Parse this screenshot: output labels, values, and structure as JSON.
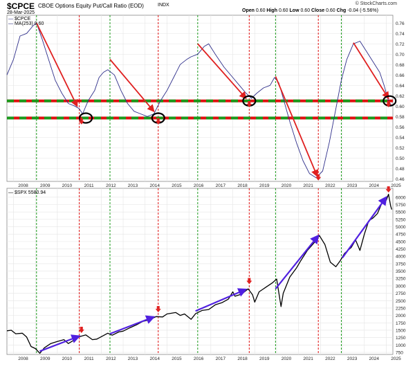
{
  "header": {
    "symbol": "$CPCE",
    "description": "CBOE Options Equity Put/Call Ratio (EOD)",
    "exchange": "INDX",
    "date": "28-Mar-2025",
    "watermark": "© StockCharts.com",
    "ohlc": {
      "open_label": "Open",
      "open": "0.60",
      "high_label": "High",
      "high": "0.60",
      "low_label": "Low",
      "low": "0.60",
      "close_label": "Close",
      "close": "0.60",
      "chg_label": "Chg",
      "chg": "-0.04 (-5.56%)"
    }
  },
  "legend": {
    "series1": "$CPCE",
    "series2": "MA(253) 0.60",
    "series3": "$SPX 5580.94"
  },
  "colors": {
    "ratio_line": "#2e2e8a",
    "spx_line": "#000000",
    "support_red": "#e01010",
    "support_green": "#1a9a1a",
    "vline_red": "#e01010",
    "vline_green": "#1a9a1a",
    "arrow_red": "#e02020",
    "arrow_blue": "#5020e0",
    "grid": "#e4e4e4"
  },
  "chart_data": [
    {
      "type": "line",
      "title": "$CPCE CBOE Options Equity Put/Call Ratio (EOD)",
      "series_name": "MA(253)",
      "x_ticks": [
        "2008",
        "2009",
        "2010",
        "2011",
        "2012",
        "2013",
        "2014",
        "2015",
        "2016",
        "2017",
        "2018",
        "2019",
        "2020",
        "2021",
        "2022",
        "2023",
        "2024",
        "2025"
      ],
      "y_ticks": [
        "0.76",
        "0.74",
        "0.72",
        "0.70",
        "0.68",
        "0.66",
        "0.64",
        "0.62",
        "0.60",
        "0.58",
        "0.56",
        "0.54",
        "0.52",
        "0.50",
        "0.48",
        "0.46"
      ],
      "ylim": [
        0.455,
        0.775
      ],
      "xlim": [
        2007.7,
        2025.3
      ],
      "horizontal_levels": [
        0.61,
        0.577
      ],
      "points": [
        [
          2007.7,
          0.66
        ],
        [
          2008.0,
          0.69
        ],
        [
          2008.3,
          0.735
        ],
        [
          2008.6,
          0.74
        ],
        [
          2008.9,
          0.755
        ],
        [
          2009.05,
          0.76
        ],
        [
          2009.3,
          0.73
        ],
        [
          2009.6,
          0.69
        ],
        [
          2009.9,
          0.65
        ],
        [
          2010.2,
          0.625
        ],
        [
          2010.5,
          0.605
        ],
        [
          2010.8,
          0.6
        ],
        [
          2011.0,
          0.595
        ],
        [
          2011.15,
          0.585
        ],
        [
          2011.4,
          0.61
        ],
        [
          2011.7,
          0.63
        ],
        [
          2011.9,
          0.655
        ],
        [
          2012.1,
          0.665
        ],
        [
          2012.3,
          0.67
        ],
        [
          2012.6,
          0.66
        ],
        [
          2012.9,
          0.63
        ],
        [
          2013.2,
          0.605
        ],
        [
          2013.5,
          0.59
        ],
        [
          2013.8,
          0.585
        ],
        [
          2014.1,
          0.58
        ],
        [
          2014.4,
          0.585
        ],
        [
          2014.7,
          0.61
        ],
        [
          2015.0,
          0.63
        ],
        [
          2015.3,
          0.655
        ],
        [
          2015.6,
          0.68
        ],
        [
          2015.9,
          0.69
        ],
        [
          2016.1,
          0.695
        ],
        [
          2016.4,
          0.7
        ],
        [
          2016.7,
          0.715
        ],
        [
          2016.9,
          0.72
        ],
        [
          2017.2,
          0.7
        ],
        [
          2017.6,
          0.675
        ],
        [
          2018.0,
          0.655
        ],
        [
          2018.3,
          0.64
        ],
        [
          2018.6,
          0.625
        ],
        [
          2018.85,
          0.615
        ],
        [
          2019.1,
          0.625
        ],
        [
          2019.4,
          0.635
        ],
        [
          2019.7,
          0.64
        ],
        [
          2019.9,
          0.655
        ],
        [
          2020.1,
          0.645
        ],
        [
          2020.3,
          0.615
        ],
        [
          2020.6,
          0.57
        ],
        [
          2020.9,
          0.53
        ],
        [
          2021.2,
          0.495
        ],
        [
          2021.5,
          0.47
        ],
        [
          2021.8,
          0.462
        ],
        [
          2022.1,
          0.475
        ],
        [
          2022.4,
          0.53
        ],
        [
          2022.7,
          0.595
        ],
        [
          2022.95,
          0.65
        ],
        [
          2023.2,
          0.69
        ],
        [
          2023.5,
          0.72
        ],
        [
          2023.8,
          0.725
        ],
        [
          2024.1,
          0.705
        ],
        [
          2024.4,
          0.685
        ],
        [
          2024.7,
          0.665
        ],
        [
          2024.9,
          0.64
        ],
        [
          2025.1,
          0.61
        ],
        [
          2025.25,
          0.6
        ]
      ],
      "vlines_red": [
        2011.0,
        2014.6,
        2018.75,
        2021.9
      ],
      "vlines_green": [
        2009.05,
        2012.4,
        2016.4,
        2019.95,
        2022.95
      ],
      "highlight_circles": [
        [
          2011.3,
          0.577
        ],
        [
          2014.6,
          0.577
        ],
        [
          2018.75,
          0.61
        ],
        [
          2025.15,
          0.61
        ]
      ],
      "down_markers": [
        [
          2011.1,
          0.57
        ],
        [
          2014.6,
          0.57
        ],
        [
          2018.75,
          0.603
        ],
        [
          2021.9,
          0.462
        ],
        [
          2025.1,
          0.603
        ]
      ],
      "red_trend_arrows": [
        [
          [
            2009.05,
            0.76
          ],
          [
            2010.9,
            0.6
          ]
        ],
        [
          [
            2012.4,
            0.69
          ],
          [
            2014.4,
            0.59
          ]
        ],
        [
          [
            2016.4,
            0.72
          ],
          [
            2018.6,
            0.615
          ]
        ],
        [
          [
            2019.95,
            0.657
          ],
          [
            2021.85,
            0.465
          ]
        ],
        [
          [
            2023.5,
            0.722
          ],
          [
            2025.1,
            0.615
          ]
        ]
      ]
    },
    {
      "type": "line",
      "title": "$SPX",
      "series_name": "$SPX 5580.94",
      "x_ticks": [
        "2008",
        "2009",
        "2010",
        "2011",
        "2012",
        "2013",
        "2014",
        "2015",
        "2016",
        "2017",
        "2018",
        "2019",
        "2020",
        "2021",
        "2022",
        "2023",
        "2024",
        "2025"
      ],
      "y_ticks": [
        "6000",
        "5750",
        "5500",
        "5250",
        "5000",
        "4750",
        "4500",
        "4250",
        "4000",
        "3750",
        "3500",
        "3250",
        "3000",
        "2750",
        "2500",
        "2250",
        "2000",
        "1750",
        "1500",
        "1250",
        "1000",
        "750"
      ],
      "ylim": [
        680,
        6300
      ],
      "xlim": [
        2007.7,
        2025.3
      ],
      "points": [
        [
          2007.7,
          1480
        ],
        [
          2007.9,
          1500
        ],
        [
          2008.1,
          1380
        ],
        [
          2008.4,
          1400
        ],
        [
          2008.6,
          1270
        ],
        [
          2008.8,
          950
        ],
        [
          2009.0,
          880
        ],
        [
          2009.2,
          720
        ],
        [
          2009.4,
          900
        ],
        [
          2009.7,
          1050
        ],
        [
          2010.0,
          1120
        ],
        [
          2010.3,
          1180
        ],
        [
          2010.5,
          1050
        ],
        [
          2010.8,
          1180
        ],
        [
          2011.0,
          1280
        ],
        [
          2011.3,
          1340
        ],
        [
          2011.6,
          1180
        ],
        [
          2011.8,
          1200
        ],
        [
          2012.0,
          1280
        ],
        [
          2012.3,
          1400
        ],
        [
          2012.5,
          1330
        ],
        [
          2012.8,
          1440
        ],
        [
          2013.0,
          1470
        ],
        [
          2013.3,
          1580
        ],
        [
          2013.6,
          1680
        ],
        [
          2013.9,
          1800
        ],
        [
          2014.2,
          1850
        ],
        [
          2014.5,
          1960
        ],
        [
          2014.8,
          1950
        ],
        [
          2015.0,
          2050
        ],
        [
          2015.4,
          2100
        ],
        [
          2015.6,
          2000
        ],
        [
          2015.8,
          2050
        ],
        [
          2016.1,
          1870
        ],
        [
          2016.3,
          2060
        ],
        [
          2016.6,
          2170
        ],
        [
          2016.9,
          2200
        ],
        [
          2017.2,
          2360
        ],
        [
          2017.5,
          2430
        ],
        [
          2017.8,
          2550
        ],
        [
          2018.0,
          2800
        ],
        [
          2018.1,
          2650
        ],
        [
          2018.4,
          2720
        ],
        [
          2018.7,
          2900
        ],
        [
          2018.9,
          2700
        ],
        [
          2019.0,
          2450
        ],
        [
          2019.2,
          2800
        ],
        [
          2019.5,
          2950
        ],
        [
          2019.8,
          3100
        ],
        [
          2020.0,
          3230
        ],
        [
          2020.2,
          2300
        ],
        [
          2020.3,
          2750
        ],
        [
          2020.6,
          3300
        ],
        [
          2020.9,
          3600
        ],
        [
          2021.1,
          3850
        ],
        [
          2021.4,
          4200
        ],
        [
          2021.7,
          4450
        ],
        [
          2021.95,
          4700
        ],
        [
          2022.2,
          4400
        ],
        [
          2022.45,
          3800
        ],
        [
          2022.7,
          3650
        ],
        [
          2022.9,
          3850
        ],
        [
          2023.1,
          4100
        ],
        [
          2023.4,
          4300
        ],
        [
          2023.6,
          4550
        ],
        [
          2023.8,
          4200
        ],
        [
          2024.0,
          4750
        ],
        [
          2024.2,
          5200
        ],
        [
          2024.4,
          5300
        ],
        [
          2024.6,
          5450
        ],
        [
          2024.8,
          5800
        ],
        [
          2025.0,
          5900
        ],
        [
          2025.1,
          6100
        ],
        [
          2025.2,
          5700
        ],
        [
          2025.25,
          5580
        ]
      ],
      "vlines_red": [
        2011.0,
        2014.6,
        2018.75,
        2021.9
      ],
      "vlines_green": [
        2009.05,
        2012.4,
        2016.4,
        2019.95,
        2022.95
      ],
      "down_markers": [
        [
          2011.1,
          1500
        ],
        [
          2014.6,
          2200
        ],
        [
          2018.75,
          3150
        ],
        [
          2025.1,
          6250
        ]
      ],
      "blue_trend_arrows": [
        [
          [
            2009.2,
            790
          ],
          [
            2011.0,
            1300
          ]
        ],
        [
          [
            2012.4,
            1380
          ],
          [
            2014.4,
            1950
          ]
        ],
        [
          [
            2016.3,
            2150
          ],
          [
            2018.6,
            2880
          ]
        ],
        [
          [
            2019.95,
            2900
          ],
          [
            2021.9,
            4700
          ]
        ],
        [
          [
            2023.0,
            3950
          ],
          [
            2025.0,
            6000
          ]
        ]
      ]
    }
  ]
}
